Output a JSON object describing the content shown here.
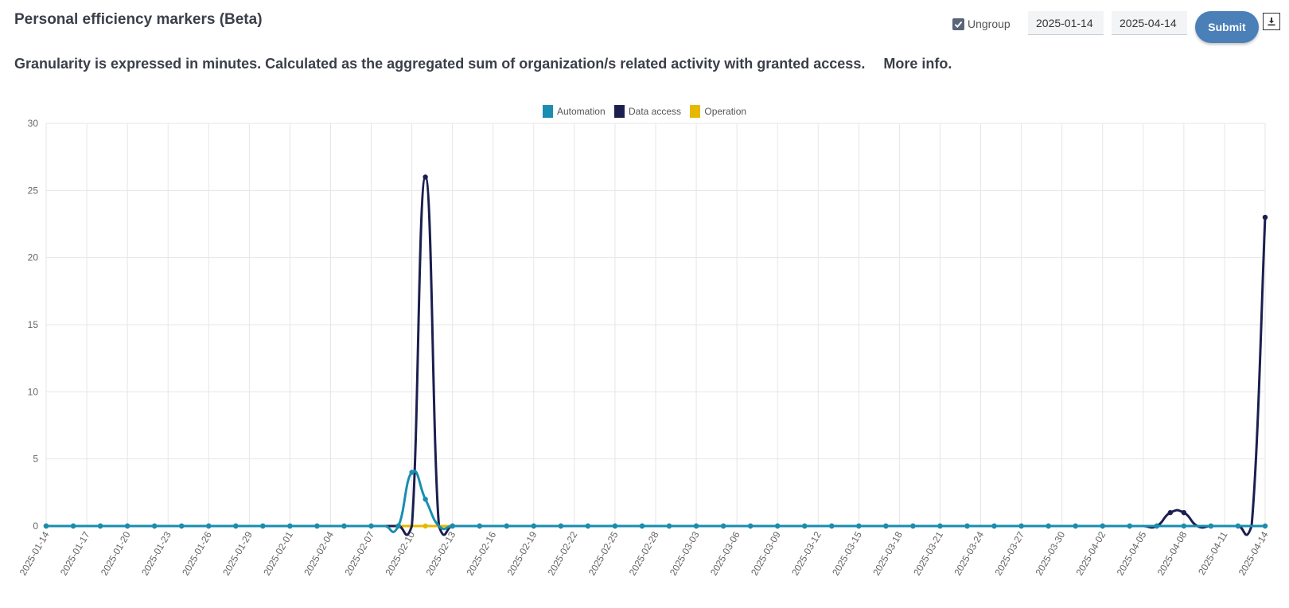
{
  "header": {
    "title": "Personal efficiency markers (Beta)",
    "subtitle": "Granularity is expressed in minutes. Calculated as the aggregated sum of organization/s related activity with granted access.",
    "more_info": "More info."
  },
  "controls": {
    "ungroup_label": "Ungroup",
    "ungroup_checked": true,
    "start_date": "2025-01-14",
    "end_date": "2025-04-14",
    "submit_label": "Submit",
    "download_icon": "download-icon"
  },
  "colors": {
    "automation": "#1a8db0",
    "data_access": "#1b1f4f",
    "operation": "#e6b800"
  },
  "chart_data": {
    "type": "line",
    "title": "",
    "xlabel": "",
    "ylabel": "",
    "ylim": [
      0,
      30
    ],
    "yticks": [
      0,
      5,
      10,
      15,
      20,
      25,
      30
    ],
    "grid": true,
    "legend_position": "top-center",
    "x_start": "2025-01-14",
    "x_end": "2025-04-14",
    "tick_labels": [
      "2025-01-14",
      "2025-01-17",
      "2025-01-20",
      "2025-01-23",
      "2025-01-26",
      "2025-01-29",
      "2025-02-01",
      "2025-02-04",
      "2025-02-07",
      "2025-02-10",
      "2025-02-13",
      "2025-02-16",
      "2025-02-19",
      "2025-02-22",
      "2025-02-25",
      "2025-02-28",
      "2025-03-03",
      "2025-03-06",
      "2025-03-09",
      "2025-03-12",
      "2025-03-15",
      "2025-03-18",
      "2025-03-21",
      "2025-03-24",
      "2025-03-27",
      "2025-03-30",
      "2025-04-02",
      "2025-04-05",
      "2025-04-08",
      "2025-04-11",
      "2025-04-14"
    ],
    "series": [
      {
        "name": "Automation",
        "color": "#1a8db0",
        "points": [
          [
            "2025-02-10",
            4
          ],
          [
            "2025-02-11",
            2
          ]
        ]
      },
      {
        "name": "Data access",
        "color": "#1b1f4f",
        "points": [
          [
            "2025-02-11",
            26
          ],
          [
            "2025-04-07",
            1
          ],
          [
            "2025-04-08",
            1
          ],
          [
            "2025-04-14",
            23
          ]
        ]
      },
      {
        "name": "Operation",
        "color": "#e6b800",
        "points": []
      }
    ]
  }
}
